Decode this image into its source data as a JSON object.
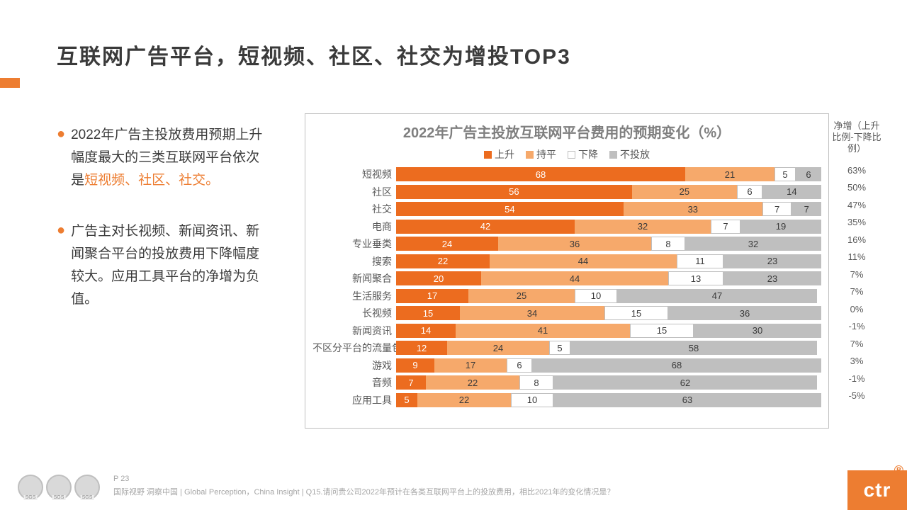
{
  "title": "互联网广告平台，短视频、社区、社交为增投TOP3",
  "bullets": [
    {
      "pre": "2022年广告主投放费用预期上升幅度最大的三类互联网平台依次是",
      "hl": "短视频、社区、社交。",
      "post": ""
    },
    {
      "pre": "广告主对长视频、新闻资讯、新闻聚合平台的投放费用下降幅度较大。应用工具平台的净增为负值。",
      "hl": "",
      "post": ""
    }
  ],
  "chart": {
    "title": "2022年广告主投放互联网平台费用的预期变化（%）",
    "legend": [
      "上升",
      "持平",
      "下降",
      "不投放"
    ],
    "colors": {
      "up": "#ec6c1f",
      "flat": "#f6a96b",
      "down": "#ffffff",
      "none": "#bfbfbf",
      "border": "#bfbfbf",
      "text": "#3a3a3a",
      "title": "#7f7f7f"
    },
    "net_header": "净增（上升比例-下降比例）",
    "rows": [
      {
        "label": "短视频",
        "up": 68,
        "flat": 21,
        "down": 5,
        "none": 6,
        "net": "63%"
      },
      {
        "label": "社区",
        "up": 56,
        "flat": 25,
        "down": 6,
        "none": 14,
        "net": "50%"
      },
      {
        "label": "社交",
        "up": 54,
        "flat": 33,
        "down": 7,
        "none": 7,
        "net": "47%"
      },
      {
        "label": "电商",
        "up": 42,
        "flat": 32,
        "down": 7,
        "none": 19,
        "net": "35%"
      },
      {
        "label": "专业垂类",
        "up": 24,
        "flat": 36,
        "down": 8,
        "none": 32,
        "net": "16%"
      },
      {
        "label": "搜索",
        "up": 22,
        "flat": 44,
        "down": 11,
        "none": 23,
        "net": "11%"
      },
      {
        "label": "新闻聚合",
        "up": 20,
        "flat": 44,
        "down": 13,
        "none": 23,
        "net": "7%"
      },
      {
        "label": "生活服务",
        "up": 17,
        "flat": 25,
        "down": 10,
        "none": 47,
        "net": "7%"
      },
      {
        "label": "长视频",
        "up": 15,
        "flat": 34,
        "down": 15,
        "none": 36,
        "net": "0%"
      },
      {
        "label": "新闻资讯",
        "up": 14,
        "flat": 41,
        "down": 15,
        "none": 30,
        "net": "-1%"
      },
      {
        "label": "不区分平台的流量包",
        "up": 12,
        "flat": 24,
        "down": 5,
        "none": 58,
        "net": "7%"
      },
      {
        "label": "游戏",
        "up": 9,
        "flat": 17,
        "down": 6,
        "none": 68,
        "net": "3%"
      },
      {
        "label": "音频",
        "up": 7,
        "flat": 22,
        "down": 8,
        "none": 62,
        "net": "-1%"
      },
      {
        "label": "应用工具",
        "up": 5,
        "flat": 22,
        "down": 10,
        "none": 63,
        "net": "-5%"
      }
    ]
  },
  "footer": {
    "page": "P 23",
    "text": "国际视野 洞察中国 | Global Perception，China Insight | Q15.请问贵公司2022年预计在各类互联网平台上的投放费用，相比2021年的变化情况是？"
  },
  "logo": "ctr"
}
